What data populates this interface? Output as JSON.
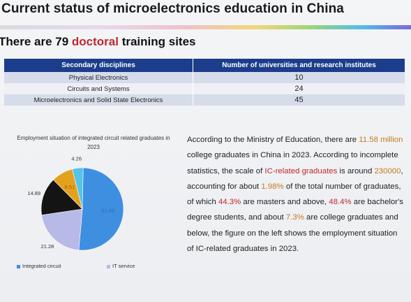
{
  "title": "Current status of microelectronics education in China",
  "subtitle": {
    "prefix": "There are 79 ",
    "highlight": "doctoral",
    "suffix": " training sites"
  },
  "table": {
    "headers": [
      "Secondary disciplines",
      "Number of universities and research institutes"
    ],
    "rows": [
      {
        "discipline": "Physical Electronics",
        "count": "10"
      },
      {
        "discipline": "Circuits and Systems",
        "count": "24"
      },
      {
        "discipline": "Microelectronics and Solid State Electronics",
        "count": "45"
      }
    ],
    "colors": {
      "header_bg": "#1c3d8c",
      "row_light": "#d7dcea",
      "row_alt": "#eef0f5"
    }
  },
  "chart_data": {
    "type": "pie",
    "title": "Employment situation of integrated circuit related graduates in 2023",
    "slices": [
      {
        "label": "Integrated circuit",
        "value": 51.06,
        "color": "#3f8fe0"
      },
      {
        "label": "IT service",
        "value": 21.28,
        "color": "#b7b9e6"
      },
      {
        "value": 14.89,
        "color": "#141414"
      },
      {
        "value": 8.51,
        "color": "#e3a21e"
      },
      {
        "value": 4.26,
        "color": "#54c4ea"
      }
    ],
    "data_labels": [
      "51.06",
      "21.28",
      "14.89",
      "8.51",
      "4.26"
    ],
    "legend": [
      "Integrated circuit",
      "IT service"
    ],
    "legend_position": "bottom"
  },
  "paragraph": {
    "t1": "According to the Ministry of Education, there are ",
    "h1": "11.58 million",
    "t2": " college graduates in China in 2023. According to incomplete statistics, the scale of ",
    "h2": "IC-related graduates",
    "t3": " is around ",
    "h3": "230000",
    "t4": ", accounting for about ",
    "h4": "1.98%",
    "t5": " of the total number of graduates, of which ",
    "h5": "44.3%",
    "t6": " are masters and above, ",
    "h6": "48.4%",
    "t7": " are bachelor's degree students, and about ",
    "h7": "7.3%",
    "t8": " are college graduates and below, the figure on the left shows the employment situation of IC-related graduates in 2023."
  }
}
